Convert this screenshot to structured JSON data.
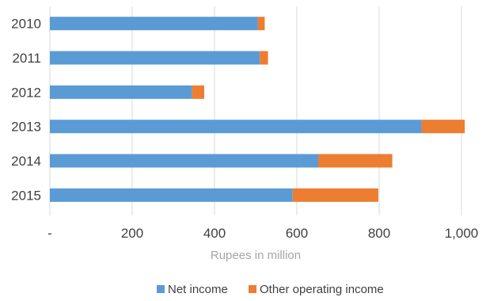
{
  "chart_data": {
    "type": "bar",
    "orientation": "horizontal",
    "stacked": true,
    "categories": [
      "2010",
      "2011",
      "2012",
      "2013",
      "2014",
      "2015"
    ],
    "series": [
      {
        "name": "Net income",
        "color": "#5b9bd5",
        "values": [
          505,
          510,
          345,
          903,
          652,
          590
        ]
      },
      {
        "name": "Other operating income",
        "color": "#ed7d31",
        "values": [
          17,
          20,
          30,
          105,
          180,
          208
        ]
      }
    ],
    "xlabel": "Rupees in million",
    "ylabel": "",
    "xlim": [
      0,
      1000
    ],
    "x_ticks": [
      {
        "value": 0,
        "label": "-"
      },
      {
        "value": 200,
        "label": "200"
      },
      {
        "value": 400,
        "label": "400"
      },
      {
        "value": 600,
        "label": "600"
      },
      {
        "value": 800,
        "label": "800"
      },
      {
        "value": 1000,
        "label": "1,000"
      }
    ],
    "grid": "vertical",
    "legend_position": "bottom"
  }
}
